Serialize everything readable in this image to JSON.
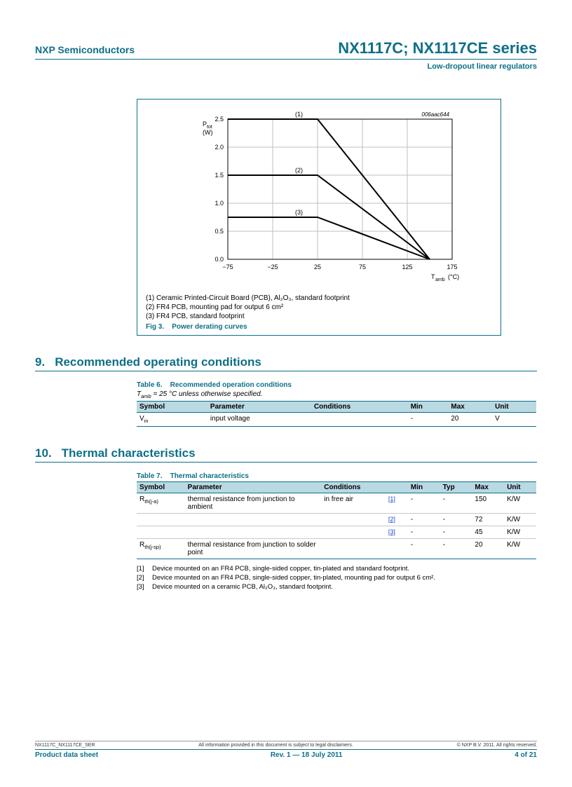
{
  "header": {
    "company": "NXP Semiconductors",
    "title": "NX1117C; NX1117CE series",
    "subtitle": "Low-dropout linear regulators"
  },
  "figure": {
    "chart_id": "006aac644",
    "ylabel_line1": "P_tot",
    "ylabel_line2": "(W)",
    "xlabel": "T_amb (°C)",
    "xlim": [
      -75,
      175
    ],
    "ylim": [
      0,
      2.5
    ],
    "xtick_step": 50,
    "ytick_step": 0.5,
    "xticks": [
      "−75",
      "−25",
      "25",
      "75",
      "125",
      "175"
    ],
    "yticks": [
      "0.0",
      "0.5",
      "1.0",
      "1.5",
      "2.0",
      "2.5"
    ],
    "grid_color": "#bfbfbf",
    "border_color": "#000000",
    "line_color": "#000000",
    "line_width": 2,
    "background_color": "#ffffff",
    "series": [
      {
        "label": "(1)",
        "points": [
          [
            -75,
            2.5
          ],
          [
            25,
            2.5
          ],
          [
            150,
            0
          ]
        ]
      },
      {
        "label": "(2)",
        "points": [
          [
            -75,
            1.5
          ],
          [
            25,
            1.5
          ],
          [
            150,
            0
          ]
        ]
      },
      {
        "label": "(3)",
        "points": [
          [
            -75,
            0.75
          ],
          [
            25,
            0.75
          ],
          [
            150,
            0
          ]
        ]
      }
    ],
    "notes": [
      "(1)  Ceramic Printed-Circuit Board (PCB), Al₂O₃, standard footprint",
      "(2)  FR4 PCB, mounting pad for output 6 cm²",
      "(3)  FR4 PCB, standard footprint"
    ],
    "caption_label": "Fig 3.",
    "caption_text": "Power derating curves"
  },
  "section9": {
    "num": "9.",
    "title": "Recommended operating conditions",
    "table_label": "Table 6.",
    "table_title": "Recommended operation conditions",
    "subnote": "T_amb = 25 °C unless otherwise specified.",
    "columns": [
      "Symbol",
      "Parameter",
      "Conditions",
      "Min",
      "Max",
      "Unit"
    ],
    "rows": [
      {
        "symbol": "V_in",
        "parameter": "input voltage",
        "conditions": "",
        "min": "-",
        "max": "20",
        "unit": "V"
      }
    ]
  },
  "section10": {
    "num": "10.",
    "title": "Thermal characteristics",
    "table_label": "Table 7.",
    "table_title": "Thermal characteristics",
    "columns": [
      "Symbol",
      "Parameter",
      "Conditions",
      "",
      "Min",
      "Typ",
      "Max",
      "Unit"
    ],
    "rows": [
      {
        "symbol": "R_th(j-a)",
        "parameter": "thermal resistance from junction to ambient",
        "conditions": "in free air",
        "ref": "[1]",
        "min": "-",
        "typ": "-",
        "max": "150",
        "unit": "K/W"
      },
      {
        "symbol": "",
        "parameter": "",
        "conditions": "",
        "ref": "[2]",
        "min": "-",
        "typ": "-",
        "max": "72",
        "unit": "K/W"
      },
      {
        "symbol": "",
        "parameter": "",
        "conditions": "",
        "ref": "[3]",
        "min": "-",
        "typ": "-",
        "max": "45",
        "unit": "K/W"
      },
      {
        "symbol": "R_th(j-sp)",
        "parameter": "thermal resistance from junction to solder point",
        "conditions": "",
        "ref": "",
        "min": "-",
        "typ": "-",
        "max": "20",
        "unit": "K/W"
      }
    ],
    "footnotes": [
      {
        "num": "[1]",
        "text": "Device mounted on an FR4 PCB, single-sided copper, tin-plated and standard footprint."
      },
      {
        "num": "[2]",
        "text": "Device mounted on an FR4 PCB, single-sided copper, tin-plated, mounting pad for output 6 cm²."
      },
      {
        "num": "[3]",
        "text": "Device mounted on a ceramic PCB, Al₂O₃, standard footprint."
      }
    ]
  },
  "footer": {
    "doc_id": "NX1117C_NX1117CE_SER",
    "disclaimer": "All information provided in this document is subject to legal disclaimers.",
    "copyright": "© NXP B.V. 2011. All rights reserved.",
    "doc_type": "Product data sheet",
    "revision": "Rev. 1 — 18 July 2011",
    "page": "4 of 21"
  }
}
